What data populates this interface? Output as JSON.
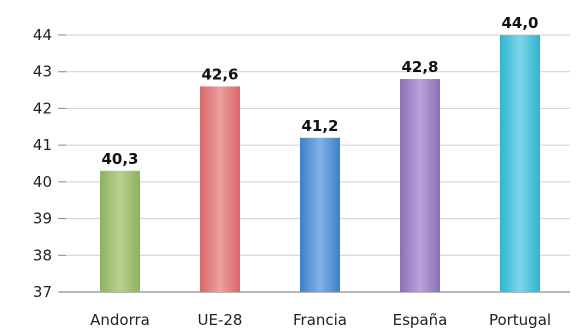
{
  "chart_data": {
    "type": "bar",
    "categories": [
      "Andorra",
      "UE-28",
      "Francia",
      "España",
      "Portugal"
    ],
    "values": [
      40.3,
      42.6,
      41.2,
      42.8,
      44.0
    ],
    "value_labels": [
      "40,3",
      "42,6",
      "41,2",
      "42,8",
      "44,0"
    ],
    "ylim": [
      37,
      44
    ],
    "yticks": [
      37,
      38,
      39,
      40,
      41,
      42,
      43,
      44
    ],
    "grid": true,
    "colors": [
      {
        "dark": "#8fb062",
        "light": "#b9d18e"
      },
      {
        "dark": "#d86668",
        "light": "#eda0a0"
      },
      {
        "dark": "#3e80c6",
        "light": "#7fb2e6"
      },
      {
        "dark": "#8a6fb1",
        "light": "#b9a3d8"
      },
      {
        "dark": "#2fb4cf",
        "light": "#7dd6e8"
      }
    ]
  }
}
